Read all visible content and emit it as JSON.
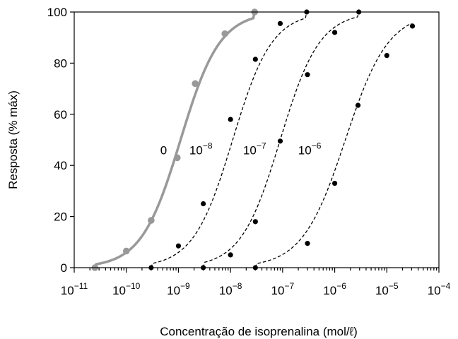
{
  "chart_data": {
    "type": "line",
    "xlabel": "Concentração de isoprenalina (mol/ℓ)",
    "ylabel": "Resposta (% máx)",
    "x_scale": "log",
    "xlim": [
      1e-11,
      0.0001
    ],
    "ylim": [
      0,
      100
    ],
    "x_ticks": [
      {
        "value": 1e-11,
        "base": "10",
        "exp": "−11"
      },
      {
        "value": 1e-10,
        "base": "10",
        "exp": "−10"
      },
      {
        "value": 1e-09,
        "base": "10",
        "exp": "−9"
      },
      {
        "value": 1e-08,
        "base": "10",
        "exp": "−8"
      },
      {
        "value": 1e-07,
        "base": "10",
        "exp": "−7"
      },
      {
        "value": 1e-06,
        "base": "10",
        "exp": "−6"
      },
      {
        "value": 1e-05,
        "base": "10",
        "exp": "−5"
      },
      {
        "value": 0.0001,
        "base": "10",
        "exp": "−4"
      }
    ],
    "y_ticks": [
      0,
      20,
      40,
      60,
      80,
      100
    ],
    "grid": false,
    "legend": "none",
    "series": [
      {
        "label_base": "0",
        "label_exp": "",
        "color": "#999999",
        "style": "solid",
        "ec50": 1.1e-09,
        "hill": 1.15,
        "points": [
          [
            2.5e-11,
            0
          ],
          [
            1e-10,
            6.5
          ],
          [
            3e-10,
            18.5
          ],
          [
            9.5e-10,
            43
          ],
          [
            2.1e-09,
            72
          ],
          [
            7.8e-09,
            91.5
          ],
          [
            2.9e-08,
            100
          ]
        ]
      },
      {
        "label_base": "10",
        "label_exp": "−8",
        "color": "#000000",
        "style": "dashed",
        "ec50": 1.1e-08,
        "hill": 1.15,
        "points": [
          [
            3e-10,
            0
          ],
          [
            1e-09,
            8.5
          ],
          [
            3e-09,
            25
          ],
          [
            1e-08,
            58
          ],
          [
            3e-08,
            81.5
          ],
          [
            9e-08,
            95.5
          ],
          [
            2.9e-07,
            100
          ]
        ]
      },
      {
        "label_base": "10",
        "label_exp": "−7",
        "color": "#000000",
        "style": "dashed",
        "ec50": 9e-08,
        "hill": 1.15,
        "points": [
          [
            3e-09,
            0
          ],
          [
            1e-08,
            5
          ],
          [
            3e-08,
            18
          ],
          [
            9e-08,
            49.5
          ],
          [
            3e-07,
            75.5
          ],
          [
            1e-06,
            92
          ],
          [
            2.9e-06,
            100
          ]
        ]
      },
      {
        "label_base": "10",
        "label_exp": "−6",
        "color": "#000000",
        "style": "dashed",
        "ec50": 1.6e-06,
        "hill": 1.05,
        "points": [
          [
            3e-08,
            0
          ],
          [
            3e-07,
            9.5
          ],
          [
            1e-06,
            33
          ],
          [
            2.8e-06,
            63.5
          ],
          [
            1e-05,
            83
          ],
          [
            3.1e-05,
            94.5
          ]
        ]
      }
    ]
  }
}
